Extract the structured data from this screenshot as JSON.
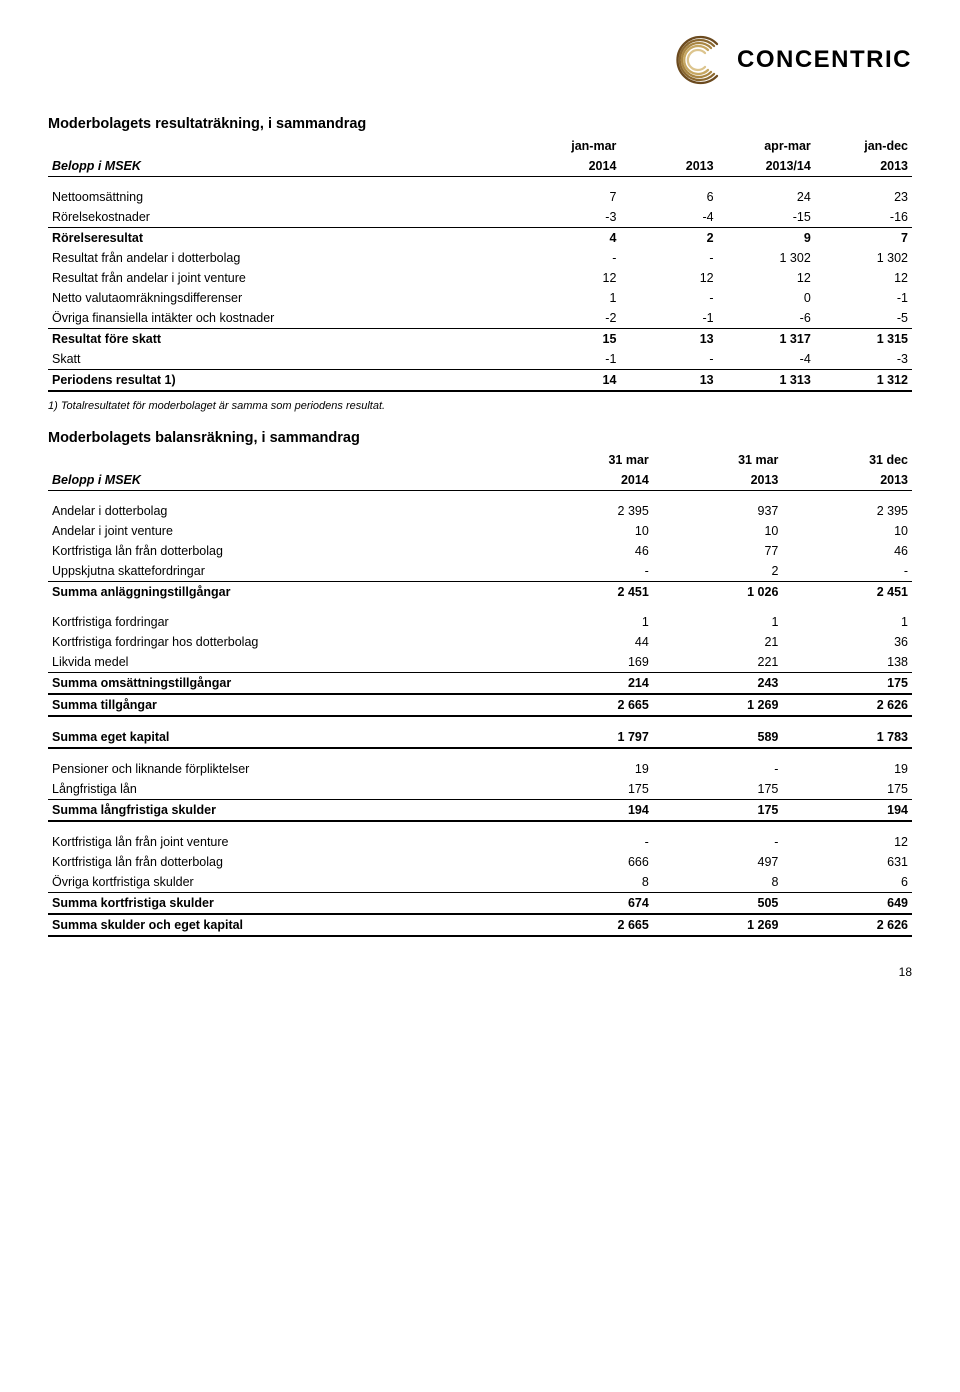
{
  "brand": {
    "name": "CONCENTRIC"
  },
  "page_number": "18",
  "income": {
    "title": "Moderbolagets resultaträkning, i sammandrag",
    "header_top": [
      "",
      "jan-mar",
      "",
      "apr-mar",
      "jan-dec"
    ],
    "header_sub_label": "Belopp i MSEK",
    "header_sub": [
      "2014",
      "2013",
      "2013/14",
      "2013"
    ],
    "rows": [
      {
        "label": "Nettoomsättning",
        "v": [
          "7",
          "6",
          "24",
          "23"
        ]
      },
      {
        "label": "Rörelsekostnader",
        "v": [
          "-3",
          "-4",
          "-15",
          "-16"
        ],
        "bb": true
      },
      {
        "label": "Rörelseresultat",
        "v": [
          "4",
          "2",
          "9",
          "7"
        ],
        "bold": true
      },
      {
        "label": "Resultat från andelar i dotterbolag",
        "v": [
          "-",
          "-",
          "1 302",
          "1 302"
        ]
      },
      {
        "label": "Resultat från andelar i joint venture",
        "v": [
          "12",
          "12",
          "12",
          "12"
        ]
      },
      {
        "label": "Netto valutaomräkningsdifferenser",
        "v": [
          "1",
          "-",
          "0",
          "-1"
        ]
      },
      {
        "label": "Övriga finansiella intäkter och kostnader",
        "v": [
          "-2",
          "-1",
          "-6",
          "-5"
        ],
        "bb": true
      },
      {
        "label": "Resultat före skatt",
        "v": [
          "15",
          "13",
          "1 317",
          "1 315"
        ],
        "bold": true
      },
      {
        "label": "Skatt",
        "v": [
          "-1",
          "-",
          "-4",
          "-3"
        ],
        "bb": true
      },
      {
        "label": "Periodens resultat 1)",
        "v": [
          "14",
          "13",
          "1 313",
          "1 312"
        ],
        "bold": true,
        "bb2": true
      }
    ],
    "footnote": "1) Totalresultatet för moderbolaget är samma som periodens resultat."
  },
  "balance": {
    "title": "Moderbolagets balansräkning, i sammandrag",
    "header_top": [
      "",
      "31 mar",
      "31 mar",
      "31 dec"
    ],
    "header_sub_label": "Belopp i MSEK",
    "header_sub": [
      "2014",
      "2013",
      "2013"
    ],
    "rows": [
      {
        "spacer": true
      },
      {
        "label": "Andelar i dotterbolag",
        "v": [
          "2 395",
          "937",
          "2 395"
        ]
      },
      {
        "label": "Andelar i joint venture",
        "v": [
          "10",
          "10",
          "10"
        ]
      },
      {
        "label": "Kortfristiga lån från dotterbolag",
        "v": [
          "46",
          "77",
          "46"
        ]
      },
      {
        "label": "Uppskjutna skattefordringar",
        "v": [
          "-",
          "2",
          "-"
        ],
        "bb": true
      },
      {
        "label": "Summa anläggningstillgångar",
        "v": [
          "2 451",
          "1 026",
          "2 451"
        ],
        "bold": true
      },
      {
        "spacer": true
      },
      {
        "label": "Kortfristiga fordringar",
        "v": [
          "1",
          "1",
          "1"
        ]
      },
      {
        "label": "Kortfristiga fordringar hos dotterbolag",
        "v": [
          "44",
          "21",
          "36"
        ]
      },
      {
        "label": "Likvida medel",
        "v": [
          "169",
          "221",
          "138"
        ],
        "bb": true
      },
      {
        "label": "Summa omsättningstillgångar",
        "v": [
          "214",
          "243",
          "175"
        ],
        "bold": true,
        "bb2": true
      },
      {
        "label": "Summa tillgångar",
        "v": [
          "2 665",
          "1 269",
          "2 626"
        ],
        "bold": true,
        "bb2": true
      },
      {
        "spacer": true
      },
      {
        "label": "Summa eget kapital",
        "v": [
          "1 797",
          "589",
          "1 783"
        ],
        "bold": true,
        "bb2": true
      },
      {
        "spacer": true
      },
      {
        "label": "Pensioner och liknande förpliktelser",
        "v": [
          "19",
          "-",
          "19"
        ]
      },
      {
        "label": "Långfristiga lån",
        "v": [
          "175",
          "175",
          "175"
        ],
        "bb": true
      },
      {
        "label": "Summa långfristiga skulder",
        "v": [
          "194",
          "175",
          "194"
        ],
        "bold": true,
        "bb2": true
      },
      {
        "spacer": true
      },
      {
        "label": "Kortfristiga lån från joint venture",
        "v": [
          "-",
          "-",
          "12"
        ]
      },
      {
        "label": "Kortfristiga lån från dotterbolag",
        "v": [
          "666",
          "497",
          "631"
        ]
      },
      {
        "label": "Övriga kortfristiga skulder",
        "v": [
          "8",
          "8",
          "6"
        ],
        "bb": true
      },
      {
        "label": "Summa kortfristiga skulder",
        "v": [
          "674",
          "505",
          "649"
        ],
        "bold": true,
        "bb2": true
      },
      {
        "label": "Summa skulder och eget kapital",
        "v": [
          "2 665",
          "1 269",
          "2 626"
        ],
        "bold": true,
        "bb2": true
      }
    ]
  }
}
